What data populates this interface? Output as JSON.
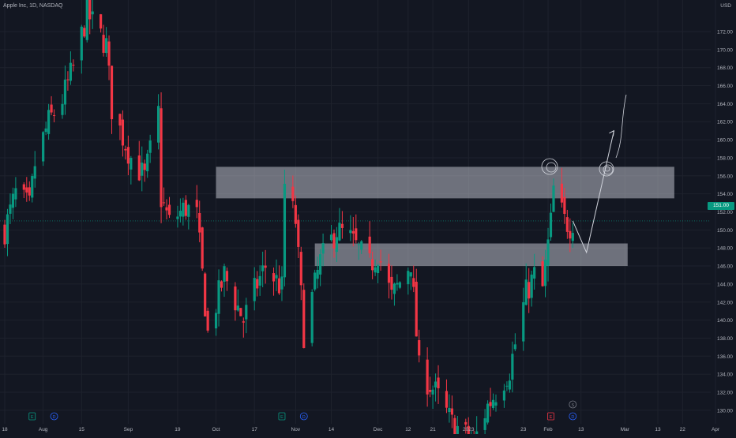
{
  "symbol": {
    "title": "Apple Inc, 1D, NASDAQ",
    "currency": "USD",
    "last_price": "151.00"
  },
  "colors": {
    "bg": "#131722",
    "up": "#089981",
    "down": "#f23645",
    "grid": "#1e222d",
    "text": "#b2b5be",
    "zone": "#c9ccd6",
    "drawing": "#d1d4dc"
  },
  "events": [
    {
      "type": "earnings",
      "label": "E",
      "time": "2022-07-28"
    },
    {
      "type": "dividend",
      "label": "D",
      "time": "2022-08-05"
    },
    {
      "type": "earnings",
      "label": "E",
      "time": "2022-10-27"
    },
    {
      "type": "dividend",
      "label": "D",
      "time": "2022-11-04"
    },
    {
      "type": "earnings",
      "label": "E",
      "time": "2023-02-02"
    },
    {
      "type": "dividend",
      "label": "D",
      "time": "2023-02-10"
    },
    {
      "type": "split",
      "label": "S",
      "time": "2023-02-10"
    }
  ],
  "chart_data": {
    "type": "candlestick",
    "title": "Apple Inc, 1D, NASDAQ",
    "ylabel": "USD",
    "ylim": [
      128.5,
      175.5
    ],
    "xlim": [
      "2022-07-18",
      "2023-04-03"
    ],
    "grid": true,
    "y_ticks": [
      130,
      132,
      134,
      136,
      138,
      140,
      142,
      144,
      146,
      148,
      150,
      152,
      154,
      156,
      158,
      160,
      162,
      164,
      166,
      168,
      170,
      172
    ],
    "x_ticks": [
      {
        "label": "18",
        "time": "2022-07-18"
      },
      {
        "label": "Aug",
        "time": "2022-08-01"
      },
      {
        "label": "15",
        "time": "2022-08-15"
      },
      {
        "label": "Sep",
        "time": "2022-09-01"
      },
      {
        "label": "19",
        "time": "2022-09-19"
      },
      {
        "label": "Oct",
        "time": "2022-10-03"
      },
      {
        "label": "17",
        "time": "2022-10-17"
      },
      {
        "label": "Nov",
        "time": "2022-11-01"
      },
      {
        "label": "14",
        "time": "2022-11-14"
      },
      {
        "label": "Dec",
        "time": "2022-12-01"
      },
      {
        "label": "12",
        "time": "2022-12-12"
      },
      {
        "label": "21",
        "time": "2022-12-21"
      },
      {
        "label": "2023",
        "time": "2023-01-03"
      },
      {
        "label": "23",
        "time": "2023-01-23"
      },
      {
        "label": "Feb",
        "time": "2023-02-01"
      },
      {
        "label": "13",
        "time": "2023-02-13"
      },
      {
        "label": "Mar",
        "time": "2023-03-01"
      },
      {
        "label": "13",
        "time": "2023-03-13"
      },
      {
        "label": "22",
        "time": "2023-03-22"
      },
      {
        "label": "Apr",
        "time": "2023-04-03"
      }
    ],
    "last_price": 151.0,
    "ohlc_anchors": [
      [
        "2022-07-18",
        150.0
      ],
      [
        "2022-07-22",
        154.0
      ],
      [
        "2022-07-27",
        152.5
      ],
      [
        "2022-07-29",
        157.3
      ],
      [
        "2022-08-03",
        162.0
      ],
      [
        "2022-08-08",
        164.5
      ],
      [
        "2022-08-12",
        168.0
      ],
      [
        "2022-08-17",
        174.0
      ],
      [
        "2022-08-24",
        170.5
      ],
      [
        "2022-08-26",
        163.5
      ],
      [
        "2022-09-02",
        158.0
      ],
      [
        "2022-09-07",
        155.8
      ],
      [
        "2022-09-12",
        163.0
      ],
      [
        "2022-09-13",
        153.5
      ],
      [
        "2022-09-16",
        150.8
      ],
      [
        "2022-09-22",
        152.5
      ],
      [
        "2022-09-26",
        151.5
      ],
      [
        "2022-09-30",
        138.5
      ],
      [
        "2022-10-06",
        145.0
      ],
      [
        "2022-10-13",
        140.0
      ],
      [
        "2022-10-18",
        144.0
      ],
      [
        "2022-10-21",
        146.0
      ],
      [
        "2022-10-27",
        143.5
      ],
      [
        "2022-10-28",
        155.0
      ],
      [
        "2022-11-01",
        151.0
      ],
      [
        "2022-11-04",
        138.5
      ],
      [
        "2022-11-10",
        146.5
      ],
      [
        "2022-11-16",
        150.0
      ],
      [
        "2022-11-21",
        149.0
      ],
      [
        "2022-11-28",
        146.0
      ],
      [
        "2022-12-01",
        147.5
      ],
      [
        "2022-12-06",
        142.5
      ],
      [
        "2022-12-13",
        146.5
      ],
      [
        "2022-12-16",
        134.5
      ],
      [
        "2022-12-22",
        132.0
      ],
      [
        "2022-12-28",
        128.5
      ],
      [
        "2023-01-05",
        126.5
      ],
      [
        "2023-01-10",
        130.5
      ],
      [
        "2023-01-18",
        134.5
      ],
      [
        "2023-01-24",
        143.0
      ],
      [
        "2023-01-27",
        145.0
      ],
      [
        "2023-01-30",
        143.5
      ],
      [
        "2023-02-02",
        150.8
      ],
      [
        "2023-02-03",
        154.5
      ],
      [
        "2023-02-07",
        151.0
      ],
      [
        "2023-02-09",
        150.5
      ],
      [
        "2023-02-10",
        151.0
      ]
    ],
    "zones": [
      {
        "name": "resistance-zone",
        "from": "2022-10-03",
        "to": "2023-03-19",
        "top": 157.0,
        "bottom": 153.5
      },
      {
        "name": "support-zone",
        "from": "2022-11-08",
        "to": "2023-03-02",
        "top": 148.5,
        "bottom": 146.0
      }
    ],
    "projection": [
      [
        "2023-02-10",
        151.0
      ],
      [
        "2023-02-15",
        147.5
      ],
      [
        "2023-02-25",
        161.0
      ]
    ]
  }
}
